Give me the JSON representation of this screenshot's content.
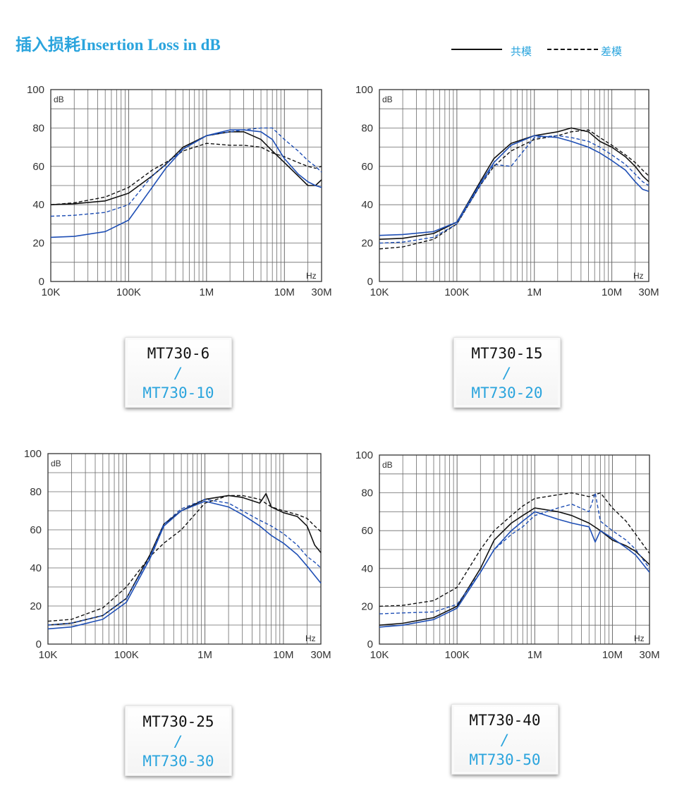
{
  "title": "插入损耗Insertion Loss in dB",
  "legend": {
    "common_mode": "共模",
    "differential_mode": "差模"
  },
  "colors": {
    "black": "#111111",
    "blue": "#1f4fb5",
    "accent": "#2aa4dd",
    "grid": "#6a6a6a"
  },
  "chart_data": [
    {
      "type": "line",
      "unit_label": "dB",
      "hz_label": "Hz",
      "x_scale": "log",
      "x_ticks": [
        [
          "10K",
          10000
        ],
        [
          "100K",
          100000
        ],
        [
          "1M",
          1000000
        ],
        [
          "10M",
          10000000
        ],
        [
          "30M",
          30000000
        ]
      ],
      "y_ticks": [
        0,
        20,
        40,
        60,
        80,
        100
      ],
      "xlim": [
        10000,
        30000000
      ],
      "ylim": [
        0,
        100
      ],
      "models": [
        "MT730-6",
        "/",
        "MT730-10"
      ],
      "series": [
        {
          "color": "black",
          "style": "solid",
          "x": [
            10000,
            20000,
            50000,
            100000,
            200000,
            300000,
            500000,
            1000000,
            2000000,
            3000000,
            5000000,
            7000000,
            10000000,
            15000000,
            20000000,
            25000000,
            30000000
          ],
          "y": [
            40,
            40.5,
            42,
            46,
            55,
            61,
            70,
            76,
            78,
            78,
            74,
            68,
            62,
            55,
            50,
            50,
            53
          ]
        },
        {
          "color": "black",
          "style": "dashed",
          "x": [
            10000,
            20000,
            50000,
            100000,
            200000,
            300000,
            500000,
            1000000,
            2000000,
            3000000,
            5000000,
            7000000,
            10000000,
            15000000,
            20000000,
            25000000,
            30000000
          ],
          "y": [
            40,
            41,
            44,
            49,
            58,
            62,
            68,
            72,
            71,
            71,
            70,
            67,
            65,
            62,
            60,
            59,
            60
          ]
        },
        {
          "color": "blue",
          "style": "solid",
          "x": [
            10000,
            20000,
            50000,
            100000,
            200000,
            300000,
            500000,
            1000000,
            2000000,
            3000000,
            5000000,
            7000000,
            10000000,
            15000000,
            20000000,
            25000000,
            30000000
          ],
          "y": [
            23,
            23.5,
            26,
            32,
            49,
            59,
            69,
            76,
            79,
            79,
            78,
            74,
            64,
            56,
            52,
            50,
            49
          ]
        },
        {
          "color": "blue",
          "style": "dashed",
          "x": [
            10000,
            20000,
            50000,
            100000,
            200000,
            300000,
            500000,
            1000000,
            2000000,
            3000000,
            5000000,
            7000000,
            10000000,
            15000000,
            20000000,
            25000000,
            30000000
          ],
          "y": [
            34,
            34.5,
            36,
            40,
            55,
            61,
            69,
            76,
            78,
            79,
            80,
            80,
            74,
            68,
            63,
            60,
            57
          ]
        }
      ]
    },
    {
      "type": "line",
      "unit_label": "dB",
      "hz_label": "Hz",
      "x_scale": "log",
      "x_ticks": [
        [
          "10K",
          10000
        ],
        [
          "100K",
          100000
        ],
        [
          "1M",
          1000000
        ],
        [
          "10M",
          10000000
        ],
        [
          "30M",
          30000000
        ]
      ],
      "y_ticks": [
        0,
        20,
        40,
        60,
        80,
        100
      ],
      "xlim": [
        10000,
        30000000
      ],
      "ylim": [
        0,
        100
      ],
      "models": [
        "MT730-15",
        "/",
        "MT730-20"
      ],
      "series": [
        {
          "color": "black",
          "style": "solid",
          "x": [
            10000,
            20000,
            50000,
            100000,
            200000,
            300000,
            500000,
            1000000,
            2000000,
            3000000,
            5000000,
            7000000,
            10000000,
            15000000,
            20000000,
            25000000,
            30000000
          ],
          "y": [
            22,
            22.5,
            25,
            31,
            52,
            64,
            72,
            76,
            78,
            80,
            78,
            73,
            70,
            65,
            60,
            55,
            52
          ]
        },
        {
          "color": "black",
          "style": "dashed",
          "x": [
            10000,
            20000,
            50000,
            100000,
            200000,
            300000,
            500000,
            1000000,
            2000000,
            3000000,
            5000000,
            7000000,
            10000000,
            15000000,
            20000000,
            25000000,
            30000000
          ],
          "y": [
            17,
            18,
            22,
            30,
            50,
            60,
            68,
            74,
            76,
            78,
            79,
            75,
            71,
            66,
            62,
            58,
            55
          ]
        },
        {
          "color": "blue",
          "style": "solid",
          "x": [
            10000,
            20000,
            50000,
            100000,
            200000,
            300000,
            500000,
            1000000,
            2000000,
            3000000,
            5000000,
            7000000,
            10000000,
            15000000,
            20000000,
            25000000,
            30000000
          ],
          "y": [
            24,
            24.5,
            26,
            31,
            51,
            62,
            71,
            76,
            75,
            73,
            70,
            67,
            63,
            58,
            52,
            48,
            47
          ]
        },
        {
          "color": "blue",
          "style": "dashed",
          "x": [
            10000,
            20000,
            50000,
            100000,
            200000,
            300000,
            500000,
            1000000,
            2000000,
            3000000,
            5000000,
            7000000,
            10000000,
            15000000,
            20000000,
            25000000,
            30000000
          ],
          "y": [
            20,
            20.5,
            23,
            30,
            50,
            61,
            60,
            75,
            76,
            75,
            73,
            70,
            66,
            61,
            56,
            52,
            50
          ]
        }
      ]
    },
    {
      "type": "line",
      "unit_label": "dB",
      "hz_label": "Hz",
      "x_scale": "log",
      "x_ticks": [
        [
          "10K",
          10000
        ],
        [
          "100K",
          100000
        ],
        [
          "1M",
          1000000
        ],
        [
          "10M",
          10000000
        ],
        [
          "30M",
          30000000
        ]
      ],
      "y_ticks": [
        0,
        20,
        40,
        60,
        80,
        100
      ],
      "xlim": [
        10000,
        30000000
      ],
      "ylim": [
        0,
        100
      ],
      "models": [
        "MT730-25",
        "/",
        "MT730-30"
      ],
      "series": [
        {
          "color": "black",
          "style": "solid",
          "x": [
            10000,
            20000,
            50000,
            100000,
            200000,
            300000,
            500000,
            1000000,
            2000000,
            3000000,
            5000000,
            6000000,
            7000000,
            10000000,
            15000000,
            20000000,
            25000000,
            30000000
          ],
          "y": [
            10,
            11,
            15,
            24,
            47,
            63,
            70,
            76,
            78,
            77,
            74,
            79,
            72,
            69,
            67,
            62,
            52,
            48
          ]
        },
        {
          "color": "black",
          "style": "dashed",
          "x": [
            10000,
            20000,
            50000,
            100000,
            200000,
            300000,
            500000,
            1000000,
            2000000,
            3000000,
            5000000,
            7000000,
            10000000,
            15000000,
            20000000,
            25000000,
            30000000
          ],
          "y": [
            12,
            13,
            19,
            30,
            46,
            53,
            60,
            74,
            78,
            78,
            76,
            72,
            70,
            68,
            66,
            62,
            59
          ]
        },
        {
          "color": "blue",
          "style": "solid",
          "x": [
            10000,
            20000,
            50000,
            100000,
            200000,
            300000,
            500000,
            1000000,
            2000000,
            3000000,
            5000000,
            7000000,
            10000000,
            15000000,
            20000000,
            25000000,
            30000000
          ],
          "y": [
            8,
            9,
            13,
            22,
            45,
            62,
            70,
            75,
            72,
            68,
            62,
            57,
            53,
            47,
            41,
            36,
            32
          ]
        },
        {
          "color": "blue",
          "style": "dashed",
          "x": [
            10000,
            20000,
            50000,
            100000,
            200000,
            300000,
            500000,
            1000000,
            2000000,
            3000000,
            5000000,
            7000000,
            10000000,
            15000000,
            20000000,
            25000000,
            30000000
          ],
          "y": [
            10,
            11,
            15,
            24,
            46,
            63,
            71,
            76,
            74,
            70,
            65,
            62,
            58,
            52,
            46,
            43,
            40
          ]
        }
      ]
    },
    {
      "type": "line",
      "unit_label": "dB",
      "hz_label": "Hz",
      "x_scale": "log",
      "x_ticks": [
        [
          "10K",
          10000
        ],
        [
          "100K",
          100000
        ],
        [
          "1M",
          1000000
        ],
        [
          "10M",
          10000000
        ],
        [
          "30M",
          30000000
        ]
      ],
      "y_ticks": [
        0,
        20,
        40,
        60,
        80,
        100
      ],
      "xlim": [
        10000,
        30000000
      ],
      "ylim": [
        0,
        100
      ],
      "models": [
        "MT730-40",
        "/",
        "MT730-50"
      ],
      "series": [
        {
          "color": "black",
          "style": "solid",
          "x": [
            10000,
            20000,
            50000,
            100000,
            200000,
            300000,
            500000,
            700000,
            1000000,
            2000000,
            3000000,
            5000000,
            7000000,
            10000000,
            15000000,
            20000000,
            30000000
          ],
          "y": [
            10,
            11,
            14,
            20,
            40,
            55,
            64,
            68,
            72,
            70,
            68,
            64,
            60,
            55,
            52,
            49,
            42
          ]
        },
        {
          "color": "black",
          "style": "dashed",
          "x": [
            10000,
            20000,
            50000,
            100000,
            200000,
            300000,
            500000,
            700000,
            1000000,
            2000000,
            3000000,
            5000000,
            7000000,
            10000000,
            15000000,
            20000000,
            30000000
          ],
          "y": [
            20,
            20.5,
            23,
            30,
            50,
            60,
            68,
            73,
            77,
            79,
            80,
            78,
            80,
            72,
            65,
            58,
            48
          ]
        },
        {
          "color": "blue",
          "style": "solid",
          "x": [
            10000,
            20000,
            50000,
            100000,
            200000,
            300000,
            500000,
            700000,
            1000000,
            2000000,
            3000000,
            5000000,
            6000000,
            7000000,
            10000000,
            15000000,
            20000000,
            30000000
          ],
          "y": [
            9,
            10,
            13,
            19,
            38,
            50,
            60,
            65,
            70,
            66,
            64,
            62,
            54,
            60,
            56,
            51,
            47,
            38
          ]
        },
        {
          "color": "blue",
          "style": "dashed",
          "x": [
            10000,
            20000,
            50000,
            100000,
            200000,
            300000,
            500000,
            700000,
            1000000,
            2000000,
            3000000,
            5000000,
            6000000,
            7000000,
            10000000,
            15000000,
            20000000,
            30000000
          ],
          "y": [
            16,
            16.5,
            17,
            21,
            38,
            50,
            58,
            62,
            68,
            72,
            74,
            70,
            80,
            65,
            60,
            55,
            50,
            40
          ]
        }
      ]
    }
  ]
}
